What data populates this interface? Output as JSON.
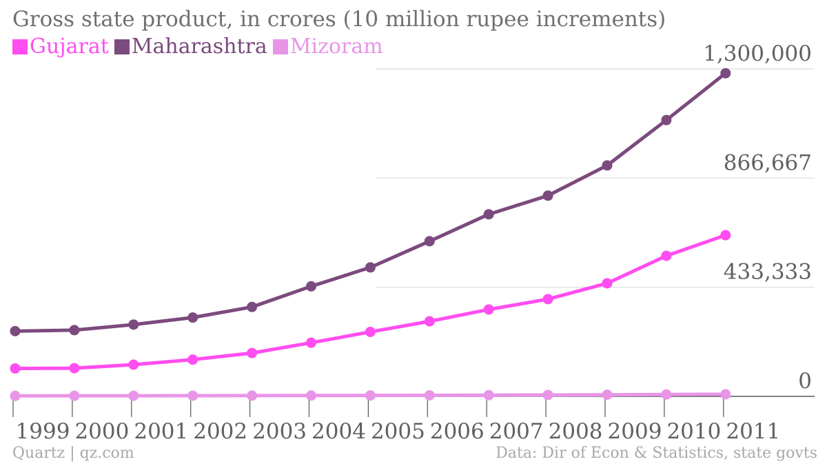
{
  "chart_data": {
    "type": "line",
    "title": "Gross state product, in crores (10 million rupee increments)",
    "x": [
      "1999",
      "2000",
      "2001",
      "2002",
      "2003",
      "2004",
      "2005",
      "2006",
      "2007",
      "2008",
      "2009",
      "2010",
      "2011"
    ],
    "series": [
      {
        "name": "Gujarat",
        "color": "#ff4df0",
        "values": [
          111000,
          112000,
          126000,
          146000,
          172000,
          213000,
          256000,
          298000,
          345000,
          386000,
          449000,
          558000,
          640000
        ]
      },
      {
        "name": "Maharashtra",
        "color": "#7b4a7e",
        "values": [
          259000,
          263000,
          285000,
          313000,
          355000,
          437000,
          512000,
          616000,
          723000,
          797000,
          917000,
          1097000,
          1283000
        ]
      },
      {
        "name": "Mizoram",
        "color": "#e895e8",
        "values": [
          2000,
          2300,
          2500,
          2800,
          3000,
          3300,
          3700,
          4200,
          4900,
          5600,
          6500,
          7500,
          8500
        ]
      }
    ],
    "yticks": [
      "0",
      "433,333",
      "866,667",
      "1,300,000"
    ],
    "ytick_values": [
      0,
      433333,
      866667,
      1300000
    ],
    "ylim": [
      0,
      1300000
    ],
    "grid": true,
    "legend_position": "top-left"
  },
  "footer": {
    "source_left": "Quartz | qz.com",
    "source_right": "Data: Dir of Econ & Statistics, state govts"
  }
}
